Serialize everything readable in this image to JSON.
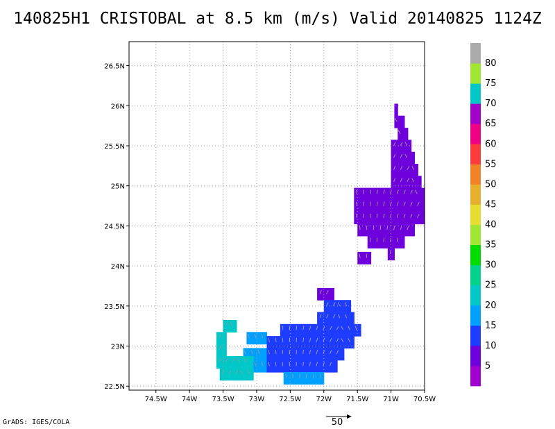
{
  "title": "140825H1 CRISTOBAL at 8.5 km (m/s) Valid 20140825 1124Z",
  "credit": "GrADS: IGES/COLA",
  "chart_data": {
    "type": "heatmap",
    "title": "140825H1 CRISTOBAL at 8.5 km (m/s) Valid 20140825 1124Z",
    "xlabel": "",
    "ylabel": "",
    "xlim": [
      -74.9,
      -70.5
    ],
    "ylim": [
      22.45,
      26.8
    ],
    "grid": true,
    "x_ticks": [
      -74.5,
      -74,
      -73.5,
      -73,
      -72.5,
      -72,
      -71.5,
      -71,
      -70.5
    ],
    "x_tick_labels": [
      "74.5W",
      "74W",
      "73.5W",
      "73W",
      "72.5W",
      "72W",
      "71.5W",
      "71W",
      "70.5W"
    ],
    "y_ticks": [
      22.5,
      23,
      23.5,
      24,
      24.5,
      25,
      25.5,
      26,
      26.5
    ],
    "y_tick_labels": [
      "22.5N",
      "23N",
      "23.5N",
      "24N",
      "24.5N",
      "25N",
      "25.5N",
      "26N",
      "26.5N"
    ],
    "colorbar": {
      "labels": [
        "5",
        "10",
        "15",
        "20",
        "25",
        "30",
        "35",
        "40",
        "45",
        "50",
        "55",
        "60",
        "65",
        "70",
        "75",
        "80"
      ],
      "colors": [
        "#a000d0",
        "#6e00dc",
        "#1e3cff",
        "#00a0ff",
        "#00c8c8",
        "#00d28c",
        "#00dc00",
        "#a0e632",
        "#e6dc32",
        "#e6af2d",
        "#f08228",
        "#fa3c3c",
        "#f00082",
        "#a000c8",
        "#00c8c8",
        "#a0e632",
        "#aaaaaa"
      ]
    },
    "vector_reference": {
      "value": 50,
      "label": "50"
    },
    "regions": [
      {
        "name": "",
        "rows": [
          {
            "lat": 25.95,
            "lon_start": -70.95,
            "lon_end": -70.9,
            "value": 5
          },
          {
            "lat": 25.8,
            "lon_start": -70.95,
            "lon_end": -70.8,
            "value": 5
          },
          {
            "lat": 25.65,
            "lon_start": -70.9,
            "lon_end": -70.75,
            "value": 5
          },
          {
            "lat": 25.5,
            "lon_start": -71.0,
            "lon_end": -70.7,
            "value": 5
          },
          {
            "lat": 25.35,
            "lon_start": -71.0,
            "lon_end": -70.65,
            "value": 8
          },
          {
            "lat": 25.2,
            "lon_start": -71.0,
            "lon_end": -70.6,
            "value": 8
          },
          {
            "lat": 25.05,
            "lon_start": -71.0,
            "lon_end": -70.55,
            "value": 8
          },
          {
            "lat": 24.9,
            "lon_start": -71.55,
            "lon_end": -70.5,
            "value": 8
          },
          {
            "lat": 24.75,
            "lon_start": -71.55,
            "lon_end": -70.5,
            "value": 8
          },
          {
            "lat": 24.6,
            "lon_start": -71.55,
            "lon_end": -70.5,
            "value": 8
          },
          {
            "lat": 24.45,
            "lon_start": -71.5,
            "lon_end": -70.65,
            "value": 8
          },
          {
            "lat": 24.3,
            "lon_start": -71.35,
            "lon_end": -70.8,
            "value": 8
          },
          {
            "lat": 24.15,
            "lon_start": -71.05,
            "lon_end": -70.95,
            "value": 5
          },
          {
            "lat": 24.1,
            "lon_start": -71.5,
            "lon_end": -71.3,
            "value": 8
          }
        ]
      },
      {
        "name": "",
        "rows": [
          {
            "lat": 23.65,
            "lon_start": -72.1,
            "lon_end": -71.85,
            "value": 5
          },
          {
            "lat": 23.5,
            "lon_start": -72.0,
            "lon_end": -71.6,
            "value": 10
          },
          {
            "lat": 23.35,
            "lon_start": -72.1,
            "lon_end": -71.55,
            "value": 10
          },
          {
            "lat": 23.25,
            "lon_start": -73.5,
            "lon_end": -73.3,
            "value": 20
          },
          {
            "lat": 23.2,
            "lon_start": -72.65,
            "lon_end": -71.45,
            "value": 10
          },
          {
            "lat": 23.1,
            "lon_start": -73.6,
            "lon_end": -73.45,
            "value": 20
          },
          {
            "lat": 23.1,
            "lon_start": -73.15,
            "lon_end": -72.85,
            "value": 17
          },
          {
            "lat": 23.05,
            "lon_start": -72.85,
            "lon_end": -71.55,
            "value": 10
          },
          {
            "lat": 22.95,
            "lon_start": -73.6,
            "lon_end": -73.45,
            "value": 20
          },
          {
            "lat": 22.9,
            "lon_start": -73.2,
            "lon_end": -72.85,
            "value": 17
          },
          {
            "lat": 22.9,
            "lon_start": -72.85,
            "lon_end": -71.7,
            "value": 10
          },
          {
            "lat": 22.8,
            "lon_start": -73.6,
            "lon_end": -73.05,
            "value": 22
          },
          {
            "lat": 22.75,
            "lon_start": -73.05,
            "lon_end": -72.85,
            "value": 17
          },
          {
            "lat": 22.75,
            "lon_start": -72.85,
            "lon_end": -71.8,
            "value": 10
          },
          {
            "lat": 22.65,
            "lon_start": -73.55,
            "lon_end": -73.05,
            "value": 20
          },
          {
            "lat": 22.6,
            "lon_start": -72.6,
            "lon_end": -72.0,
            "value": 15
          }
        ]
      }
    ]
  }
}
